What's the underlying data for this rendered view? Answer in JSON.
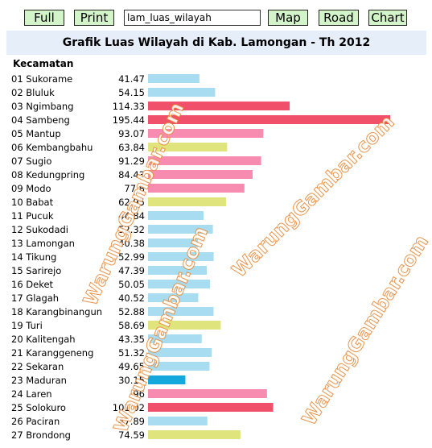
{
  "toolbar": {
    "full_label": "Full",
    "print_label": "Print",
    "field_value": "lam_luas_wilayah",
    "map_label": "Map",
    "road_label": "Road",
    "chart_label": "Chart"
  },
  "colors": {
    "button_bg": "#d3f4c9",
    "title_bg": "#e6eef9",
    "watermark": "#e88a3a"
  },
  "watermark_text": "WarungGambar.com",
  "chart_data": {
    "type": "bar",
    "orientation": "horizontal",
    "title": "Grafik Luas Wilayah di Kab. Lamongan - Th 2012",
    "category_header": "Kecamatan",
    "categories": [
      "01 Sukorame",
      "02 Bluluk",
      "03 Ngimbang",
      "04 Sambeng",
      "05 Mantup",
      "06 Kembangbahu",
      "07 Sugio",
      "08 Kedungpring",
      "09 Modo",
      "10 Babat",
      "11 Pucuk",
      "12 Sukodadi",
      "13 Lamongan",
      "14 Tikung",
      "15 Sarirejo",
      "16 Deket",
      "17 Glagah",
      "18 Karangbinangun",
      "19 Turi",
      "20 Kalitengah",
      "21 Karanggeneng",
      "22 Sekaran",
      "23 Maduran",
      "24 Laren",
      "25 Solokuro",
      "26 Paciran",
      "27 Brondong"
    ],
    "value_labels": [
      "41.47",
      "54.15",
      "114.33",
      "195.44",
      "93.07",
      "63.84",
      "91.29",
      "84.43",
      "77.8",
      "62.95",
      "44.84",
      "52.32",
      "40.38",
      "52.99",
      "47.39",
      "50.05",
      "40.52",
      "52.88",
      "58.69",
      "43.35",
      "51.32",
      "49.65",
      "30.15",
      "96",
      "101.02",
      "47.89",
      "74.59"
    ],
    "values": [
      41.47,
      54.15,
      114.33,
      195.44,
      93.07,
      63.84,
      91.29,
      84.43,
      77.8,
      62.95,
      44.84,
      52.32,
      40.38,
      52.99,
      47.39,
      50.05,
      40.52,
      52.88,
      58.69,
      43.35,
      51.32,
      49.65,
      30.15,
      96,
      101.02,
      47.89,
      74.59
    ],
    "bar_colors": [
      "#a8dcf0",
      "#a8dcf0",
      "#f0506a",
      "#f0506a",
      "#f78cb0",
      "#dfe57c",
      "#f78cb0",
      "#f78cb0",
      "#f78cb0",
      "#dfe57c",
      "#a8dcf0",
      "#a8dcf0",
      "#a8dcf0",
      "#a8dcf0",
      "#a8dcf0",
      "#a8dcf0",
      "#a8dcf0",
      "#a8dcf0",
      "#dfe57c",
      "#a8dcf0",
      "#a8dcf0",
      "#a8dcf0",
      "#15a8dc",
      "#f78cb0",
      "#f0506a",
      "#a8dcf0",
      "#dfe57c"
    ],
    "xlim": [
      0,
      195.44
    ],
    "grid": false,
    "legend": "none"
  }
}
